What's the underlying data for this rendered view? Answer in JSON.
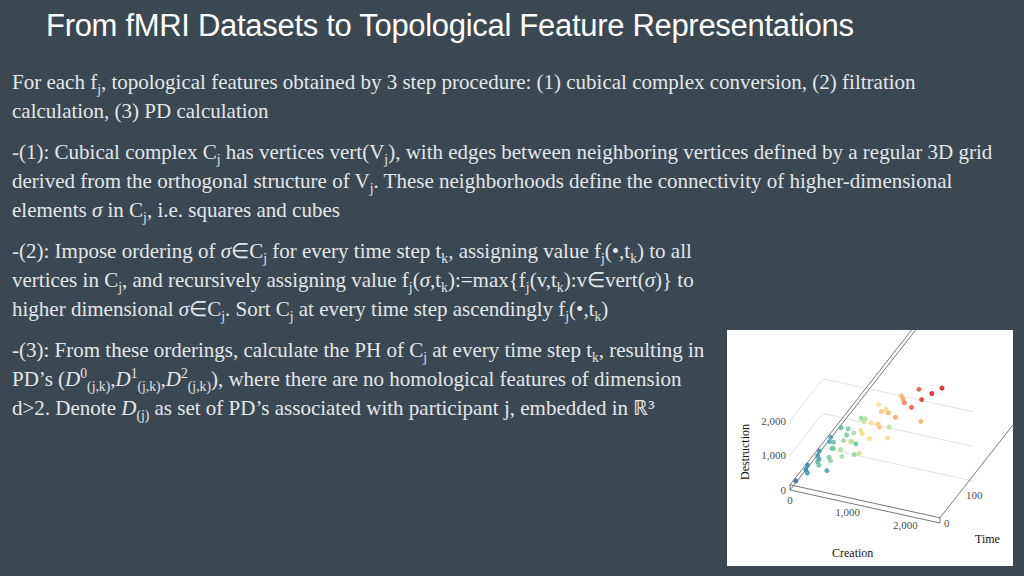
{
  "title": "From fMRI Datasets to Topological Feature Representations",
  "paragraphs": [
    [
      "For each f",
      {
        "sub": "j"
      },
      ", topological features obtained by 3 step procedure: (1) cubical complex conversion, (2) filtration calculation, (3) PD calculation"
    ],
    [
      "-(1): Cubical complex C",
      {
        "sub": "j"
      },
      " has vertices vert(V",
      {
        "sub": "j"
      },
      "), with edges between neighboring vertices defined by a regular 3D grid derived from the orthogonal structure of V",
      {
        "sub": "j"
      },
      ". These neighborhoods define the connectivity of higher-dimensional elements ",
      {
        "i": "σ"
      },
      " in C",
      {
        "sub": "j"
      },
      ", i.e. squares and cubes"
    ],
    [
      "-(2): Impose ordering of ",
      {
        "i": "σ"
      },
      "∈C",
      {
        "sub": "j"
      },
      " for every time step t",
      {
        "sub": "k"
      },
      ", assigning value f",
      {
        "sub": "j"
      },
      "(•,t",
      {
        "sub": "k"
      },
      ") to all vertices in C",
      {
        "sub": "j"
      },
      ", and recursively assigning value f",
      {
        "sub": "j"
      },
      "(",
      {
        "i": "σ"
      },
      ",t",
      {
        "sub": "k"
      },
      "):=max{f",
      {
        "sub": "j"
      },
      "(v,t",
      {
        "sub": "k"
      },
      "):v∈vert(",
      {
        "i": "σ"
      },
      ")} to higher dimensional ",
      {
        "i": "σ"
      },
      "∈C",
      {
        "sub": "j"
      },
      ". Sort C",
      {
        "sub": "j"
      },
      " at every time step ascendingly f",
      {
        "sub": "j"
      },
      "(•,t",
      {
        "sub": "k"
      },
      ")"
    ],
    [
      "-(3): From these orderings, calculate the PH of C",
      {
        "sub": "j"
      },
      " at every time step t",
      {
        "sub": "k"
      },
      ", resulting in PD’s (",
      {
        "i": "D",
        "sup": "0",
        "sub": "(j,k)"
      },
      ",",
      {
        "i": "D",
        "sup": "1",
        "sub": "(j,k)"
      },
      ",",
      {
        "i": "D",
        "sup": "2",
        "sub": "(j,k)"
      },
      "), where there are no homological features of dimension d>2. Denote ",
      {
        "i": "D",
        "sub": "(j)"
      },
      " as set of PD’s associated with participant j, embedded in ℝ³"
    ]
  ],
  "chart_data": {
    "type": "scatter3d",
    "x_label": "Creation",
    "y_label": "Destruction",
    "z_label": "Time",
    "x": [
      100,
      300,
      500,
      700,
      900,
      1200,
      200,
      400,
      600,
      800,
      1000,
      1300,
      150,
      350,
      600,
      900,
      1100,
      1400,
      250,
      500,
      700,
      1000,
      1300,
      1600,
      200,
      450,
      800,
      1100,
      1400,
      1800,
      300,
      600,
      900,
      1200,
      1600,
      1900,
      250,
      550,
      850,
      1200,
      1500,
      2000,
      350,
      700,
      1000,
      1400,
      1700,
      2100,
      600,
      1000,
      1500,
      2000,
      800,
      1300
    ],
    "y": [
      300,
      600,
      900,
      1100,
      1300,
      1500,
      500,
      800,
      1000,
      1300,
      1600,
      1800,
      450,
      700,
      1100,
      1400,
      1700,
      2000,
      600,
      900,
      1200,
      1600,
      1900,
      2200,
      550,
      900,
      1300,
      1700,
      2100,
      2400,
      700,
      1000,
      1500,
      1900,
      2300,
      2500,
      650,
      1000,
      1400,
      1800,
      2200,
      2550,
      800,
      1200,
      1700,
      2100,
      2400,
      2580,
      700,
      1150,
      1650,
      2150,
      900,
      1400
    ],
    "z": [
      0,
      0,
      0,
      0,
      0,
      0,
      20,
      20,
      20,
      20,
      20,
      20,
      40,
      40,
      40,
      40,
      40,
      40,
      60,
      60,
      60,
      60,
      60,
      60,
      80,
      80,
      80,
      80,
      80,
      80,
      100,
      100,
      100,
      100,
      100,
      100,
      120,
      120,
      120,
      120,
      120,
      120,
      140,
      140,
      140,
      140,
      140,
      140,
      10,
      30,
      50,
      70,
      90,
      110
    ],
    "xlim": [
      0,
      2600
    ],
    "ylim": [
      0,
      2600
    ],
    "zlim": [
      0,
      150
    ],
    "xticks": [
      0,
      {
        "value": 1000,
        "label": "1,000"
      },
      {
        "value": 2000,
        "label": "2,000"
      }
    ],
    "yticks": [
      0,
      {
        "value": 1000,
        "label": "1,000"
      },
      {
        "value": 2000,
        "label": "2,000"
      }
    ],
    "zticks": [
      0,
      100
    ]
  }
}
